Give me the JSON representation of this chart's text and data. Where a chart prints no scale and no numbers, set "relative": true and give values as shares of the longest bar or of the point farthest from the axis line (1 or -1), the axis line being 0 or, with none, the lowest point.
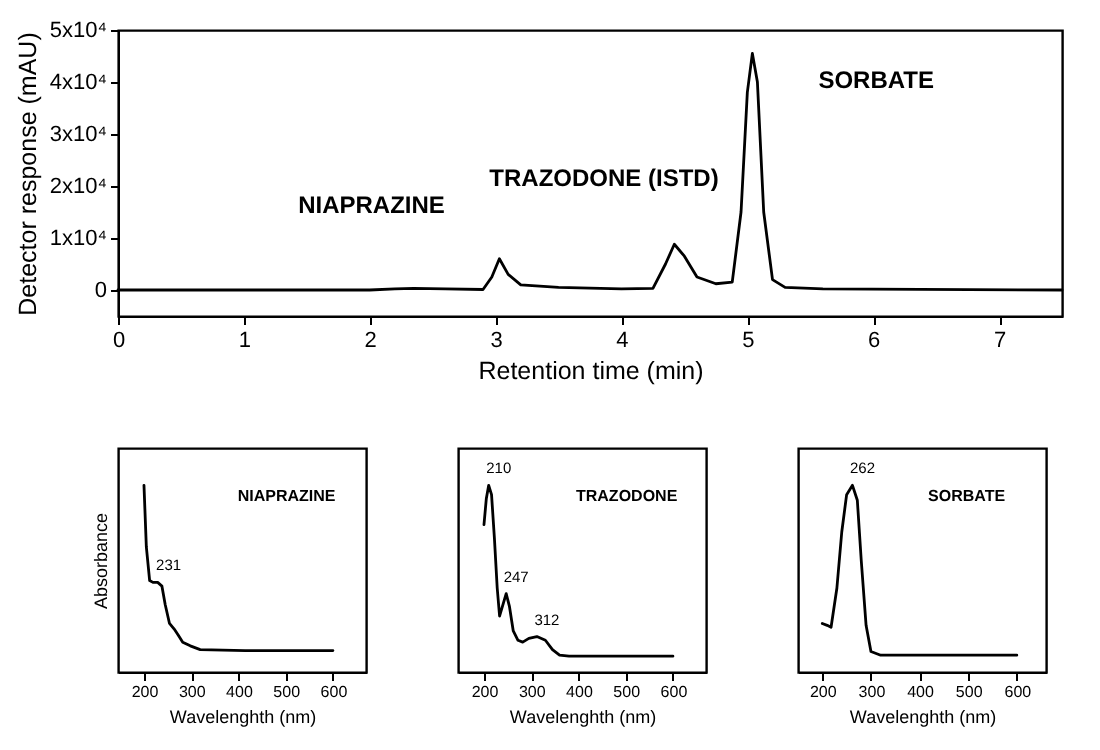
{
  "chart_data": [
    {
      "type": "line",
      "xlabel": "Retention time (min)",
      "ylabel": "Detector response (mAU)",
      "xlim": [
        0,
        7.5
      ],
      "xticks": [
        0,
        1,
        2,
        3,
        4,
        5,
        6,
        7
      ],
      "ylim": [
        -5000,
        50000
      ],
      "yticks": [
        0,
        {
          "value": 10000,
          "label": "1x10⁴"
        },
        {
          "value": 20000,
          "label": "2x10⁴"
        },
        {
          "value": 30000,
          "label": "3x10⁴"
        },
        {
          "value": 40000,
          "label": "4x10⁴"
        },
        {
          "value": 50000,
          "label": "5x10⁴"
        }
      ],
      "grid": false,
      "x": [
        0,
        2.0,
        2.2,
        2.35,
        2.6,
        2.9,
        2.97,
        3.03,
        3.1,
        3.2,
        3.5,
        4.0,
        4.25,
        4.35,
        4.42,
        4.5,
        4.6,
        4.75,
        4.88,
        4.95,
        5.0,
        5.04,
        5.08,
        5.13,
        5.2,
        5.3,
        5.6,
        7.5
      ],
      "series": [
        {
          "color": "#000000",
          "values": [
            0,
            0,
            200,
            300,
            200,
            100,
            2500,
            6000,
            3000,
            1000,
            500,
            200,
            300,
            5000,
            8800,
            6500,
            2500,
            1200,
            1500,
            15000,
            38000,
            45500,
            40000,
            15000,
            2000,
            500,
            200,
            0
          ]
        }
      ],
      "annotations": [
        {
          "text": "NIAPRAZINE",
          "x": 2.92,
          "y": 4000
        },
        {
          "text": "TRAZODONE (ISTD)",
          "x": 4.29,
          "y": 7700
        },
        {
          "text": "SORBATE",
          "x": 5.15,
          "y": 33400
        }
      ]
    },
    {
      "type": "line",
      "title": "NIAPRAZINE",
      "xlabel": "Wavelenghth (nm)",
      "ylabel": "Absorbance",
      "relative": true,
      "tick_labels": "x",
      "xlim": [
        145,
        670
      ],
      "xticks": [
        200,
        300,
        400,
        500,
        600
      ],
      "x": [
        200,
        205,
        212,
        219,
        229,
        238,
        245,
        254,
        264,
        272,
        282,
        298,
        319,
        414,
        600
      ],
      "series": [
        {
          "color": "#000000",
          "values": [
            1.0,
            0.67,
            0.49,
            0.48,
            0.48,
            0.46,
            0.36,
            0.26,
            0.23,
            0.2,
            0.16,
            0.14,
            0.12,
            0.115,
            0.115
          ]
        }
      ],
      "annotations": [
        {
          "text": "231",
          "x": 231,
          "y": 0.48
        }
      ]
    },
    {
      "type": "line",
      "title": "TRAZODONE",
      "xlabel": "Wavelenghth (nm)",
      "relative": true,
      "tick_labels": "x",
      "xlim": [
        145,
        670
      ],
      "xticks": [
        200,
        300,
        400,
        500,
        600
      ],
      "x": [
        200,
        205,
        210,
        216,
        222,
        228,
        233,
        240,
        247,
        254,
        262,
        272,
        282,
        295,
        312,
        330,
        345,
        360,
        380,
        600
      ],
      "series": [
        {
          "color": "#000000",
          "values": [
            0.79,
            0.93,
            1.0,
            0.95,
            0.72,
            0.45,
            0.3,
            0.36,
            0.42,
            0.35,
            0.22,
            0.17,
            0.16,
            0.18,
            0.19,
            0.17,
            0.12,
            0.09,
            0.085,
            0.085
          ]
        }
      ],
      "annotations": [
        {
          "text": "210",
          "x": 210,
          "y": 1.0
        },
        {
          "text": "247",
          "x": 247,
          "y": 0.42
        },
        {
          "text": "312",
          "x": 312,
          "y": 0.19
        }
      ]
    },
    {
      "type": "line",
      "title": "SORBATE",
      "xlabel": "Wavelenghth (nm)",
      "relative": true,
      "tick_labels": "x",
      "xlim": [
        150,
        660
      ],
      "xticks": [
        200,
        300,
        400,
        500,
        600
      ],
      "x": [
        200,
        210,
        218,
        230,
        240,
        250,
        262,
        272,
        280,
        290,
        300,
        320,
        600
      ],
      "series": [
        {
          "color": "#000000",
          "values": [
            0.26,
            0.25,
            0.24,
            0.45,
            0.75,
            0.95,
            1.0,
            0.92,
            0.6,
            0.25,
            0.11,
            0.09,
            0.09
          ]
        }
      ],
      "annotations": [
        {
          "text": "262",
          "x": 262,
          "y": 1.0
        }
      ]
    }
  ]
}
